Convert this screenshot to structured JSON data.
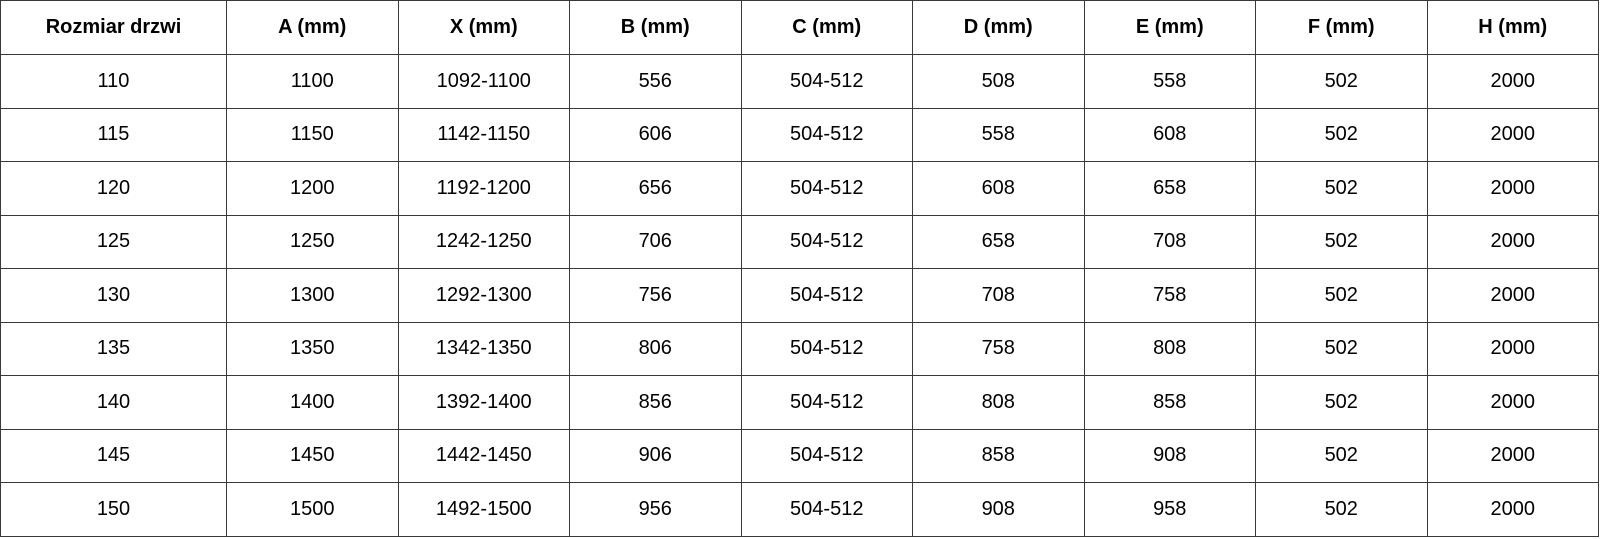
{
  "table": {
    "headers": [
      "Rozmiar drzwi",
      "A (mm)",
      "X (mm)",
      "B (mm)",
      "C (mm)",
      "D (mm)",
      "E (mm)",
      "F (mm)",
      "H (mm)"
    ],
    "rows": [
      [
        "110",
        "1100",
        "1092-1100",
        "556",
        "504-512",
        "508",
        "558",
        "502",
        "2000"
      ],
      [
        "115",
        "1150",
        "1142-1150",
        "606",
        "504-512",
        "558",
        "608",
        "502",
        "2000"
      ],
      [
        "120",
        "1200",
        "1192-1200",
        "656",
        "504-512",
        "608",
        "658",
        "502",
        "2000"
      ],
      [
        "125",
        "1250",
        "1242-1250",
        "706",
        "504-512",
        "658",
        "708",
        "502",
        "2000"
      ],
      [
        "130",
        "1300",
        "1292-1300",
        "756",
        "504-512",
        "708",
        "758",
        "502",
        "2000"
      ],
      [
        "135",
        "1350",
        "1342-1350",
        "806",
        "504-512",
        "758",
        "808",
        "502",
        "2000"
      ],
      [
        "140",
        "1400",
        "1392-1400",
        "856",
        "504-512",
        "808",
        "858",
        "502",
        "2000"
      ],
      [
        "145",
        "1450",
        "1442-1450",
        "906",
        "504-512",
        "858",
        "908",
        "502",
        "2000"
      ],
      [
        "150",
        "1500",
        "1492-1500",
        "956",
        "504-512",
        "908",
        "958",
        "502",
        "2000"
      ]
    ]
  }
}
